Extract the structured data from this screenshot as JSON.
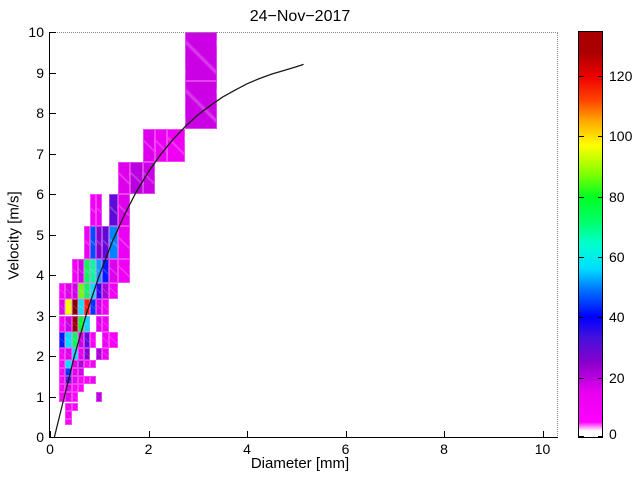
{
  "title": "24−Nov−2017",
  "axes": {
    "xlabel": "Diameter [mm]",
    "ylabel": "Velocity [m/s]",
    "x_ticks": [
      0,
      2,
      4,
      6,
      8,
      10
    ],
    "y_ticks": [
      0,
      1,
      2,
      3,
      4,
      5,
      6,
      7,
      8,
      9,
      10
    ],
    "xlim": [
      0,
      10.3
    ],
    "ylim": [
      0,
      10
    ]
  },
  "colorbar": {
    "ticks": [
      0,
      20,
      40,
      60,
      80,
      100,
      120
    ],
    "max_value": 134.8,
    "colormap_stops": [
      [
        0,
        "#ffffff"
      ],
      [
        2,
        "#ffffff"
      ],
      [
        5,
        "#ff00ff"
      ],
      [
        15,
        "#e800f0"
      ],
      [
        25,
        "#8800cc"
      ],
      [
        33,
        "#4411dd"
      ],
      [
        40,
        "#0000ff"
      ],
      [
        48,
        "#0066ff"
      ],
      [
        56,
        "#00ddff"
      ],
      [
        64,
        "#00ffd0"
      ],
      [
        72,
        "#00ff66"
      ],
      [
        80,
        "#00ff22"
      ],
      [
        88,
        "#88ff00"
      ],
      [
        97,
        "#ffff00"
      ],
      [
        105,
        "#ffaa00"
      ],
      [
        112,
        "#ff4400"
      ],
      [
        120,
        "#ee0000"
      ],
      [
        128,
        "#aa0000"
      ],
      [
        135,
        "#600000"
      ]
    ]
  },
  "chart_data": {
    "type": "heatmap",
    "title": "24−Nov−2017",
    "xlabel": "Diameter [mm]",
    "ylabel": "Velocity [m/s]",
    "xlim": [
      0,
      10.3
    ],
    "ylim": [
      0,
      10
    ],
    "legend": "colorbar right, counts 0-135",
    "d_edges": [
      0.19,
      0.31,
      0.44,
      0.56,
      0.69,
      0.81,
      0.94,
      1.06,
      1.19,
      1.38,
      1.63,
      1.88,
      2.13,
      2.38,
      2.75,
      3.4
    ],
    "v_edges": [
      0.3,
      0.45,
      0.65,
      0.85,
      1.1,
      1.3,
      1.5,
      1.7,
      1.9,
      2.2,
      2.6,
      3.0,
      3.4,
      3.8,
      4.4,
      5.2,
      6.0,
      6.8,
      7.6,
      8.8,
      10.0
    ],
    "cells": [
      [
        1,
        0,
        10
      ],
      [
        1,
        1,
        12
      ],
      [
        1,
        2,
        12
      ],
      [
        2,
        2,
        7
      ],
      [
        0,
        3,
        7
      ],
      [
        1,
        3,
        16
      ],
      [
        2,
        3,
        9
      ],
      [
        6,
        3,
        20
      ],
      [
        0,
        4,
        7
      ],
      [
        1,
        4,
        16
      ],
      [
        2,
        4,
        9
      ],
      [
        3,
        4,
        7
      ],
      [
        0,
        5,
        9
      ],
      [
        1,
        5,
        30
      ],
      [
        2,
        5,
        16
      ],
      [
        3,
        5,
        7
      ],
      [
        4,
        5,
        7
      ],
      [
        5,
        5,
        14
      ],
      [
        0,
        6,
        9
      ],
      [
        1,
        6,
        44
      ],
      [
        2,
        6,
        16
      ],
      [
        3,
        6,
        18
      ],
      [
        0,
        7,
        9
      ],
      [
        1,
        7,
        56
      ],
      [
        2,
        7,
        16
      ],
      [
        3,
        7,
        22
      ],
      [
        4,
        7,
        7
      ],
      [
        5,
        7,
        14
      ],
      [
        0,
        8,
        9
      ],
      [
        1,
        8,
        16
      ],
      [
        2,
        8,
        56
      ],
      [
        3,
        8,
        16
      ],
      [
        4,
        8,
        26
      ],
      [
        6,
        8,
        22
      ],
      [
        7,
        8,
        14
      ],
      [
        0,
        9,
        42
      ],
      [
        1,
        9,
        56
      ],
      [
        2,
        9,
        74
      ],
      [
        3,
        9,
        18
      ],
      [
        4,
        9,
        30
      ],
      [
        5,
        9,
        9
      ],
      [
        7,
        9,
        12
      ],
      [
        8,
        9,
        9
      ],
      [
        0,
        10,
        9
      ],
      [
        1,
        10,
        18
      ],
      [
        2,
        10,
        130
      ],
      [
        3,
        10,
        80
      ],
      [
        4,
        10,
        56
      ],
      [
        6,
        10,
        16
      ],
      [
        7,
        10,
        12
      ],
      [
        0,
        11,
        16
      ],
      [
        1,
        11,
        96
      ],
      [
        2,
        11,
        132
      ],
      [
        3,
        11,
        58
      ],
      [
        4,
        11,
        116
      ],
      [
        5,
        11,
        44
      ],
      [
        6,
        11,
        18
      ],
      [
        7,
        11,
        12
      ],
      [
        0,
        12,
        9
      ],
      [
        1,
        12,
        16
      ],
      [
        2,
        12,
        18
      ],
      [
        3,
        12,
        86
      ],
      [
        4,
        12,
        74
      ],
      [
        5,
        12,
        56
      ],
      [
        6,
        12,
        36
      ],
      [
        7,
        12,
        22
      ],
      [
        8,
        12,
        12
      ],
      [
        2,
        13,
        12
      ],
      [
        3,
        13,
        18
      ],
      [
        4,
        13,
        74
      ],
      [
        5,
        13,
        68
      ],
      [
        6,
        13,
        52
      ],
      [
        7,
        13,
        42
      ],
      [
        8,
        13,
        16
      ],
      [
        9,
        13,
        12
      ],
      [
        4,
        14,
        14
      ],
      [
        5,
        14,
        46
      ],
      [
        6,
        14,
        26
      ],
      [
        7,
        14,
        30
      ],
      [
        8,
        14,
        50
      ],
      [
        9,
        14,
        14
      ],
      [
        5,
        15,
        12
      ],
      [
        6,
        15,
        14
      ],
      [
        8,
        15,
        30
      ],
      [
        9,
        15,
        16
      ],
      [
        9,
        16,
        16
      ],
      [
        10,
        16,
        20
      ],
      [
        11,
        16,
        18
      ],
      [
        11,
        17,
        16
      ],
      [
        12,
        17,
        14
      ],
      [
        13,
        17,
        12
      ],
      [
        14,
        18,
        18
      ],
      [
        14,
        19,
        18
      ]
    ],
    "curve": {
      "name": "terminal-velocity-curve",
      "points": [
        [
          0.09,
          0.0
        ],
        [
          0.25,
          0.79
        ],
        [
          0.5,
          2.02
        ],
        [
          0.75,
          3.08
        ],
        [
          1.0,
          3.99
        ],
        [
          1.25,
          4.78
        ],
        [
          1.5,
          5.46
        ],
        [
          1.75,
          6.05
        ],
        [
          2.0,
          6.55
        ],
        [
          2.25,
          6.98
        ],
        [
          2.5,
          7.35
        ],
        [
          2.75,
          7.67
        ],
        [
          3.0,
          7.95
        ],
        [
          3.25,
          8.18
        ],
        [
          3.5,
          8.39
        ],
        [
          3.75,
          8.56
        ],
        [
          4.0,
          8.72
        ],
        [
          4.25,
          8.85
        ],
        [
          4.5,
          8.96
        ],
        [
          4.75,
          9.05
        ],
        [
          5.0,
          9.14
        ],
        [
          5.15,
          9.2
        ]
      ]
    }
  }
}
